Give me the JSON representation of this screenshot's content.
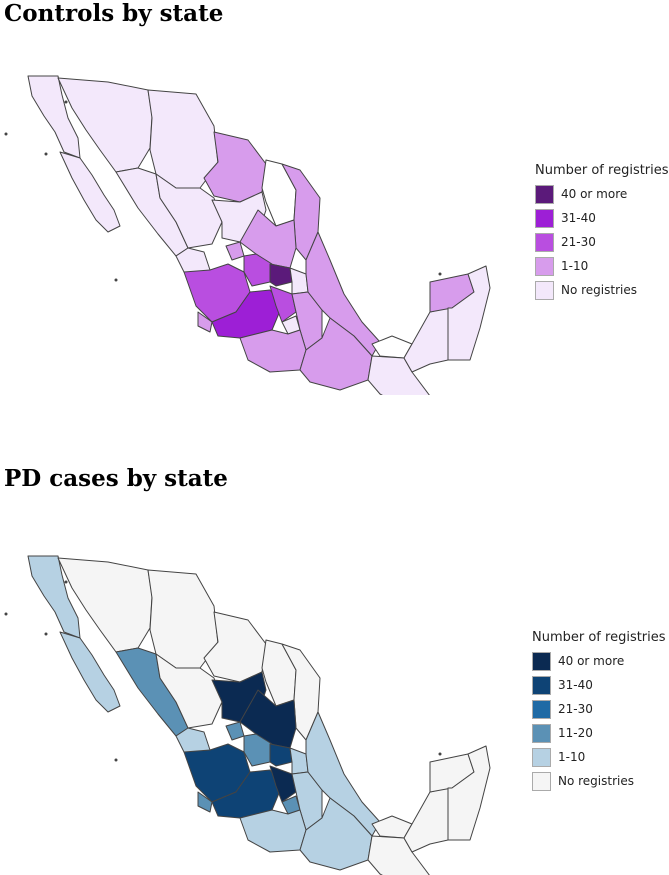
{
  "maps": [
    {
      "id": "controls",
      "title": "Controls by state",
      "legend": {
        "title": "Number of registries",
        "items": [
          {
            "label": "40 or more",
            "color": "#5b1a7a"
          },
          {
            "label": "31-40",
            "color": "#9d1fd6"
          },
          {
            "label": "21-30",
            "color": "#b94ee0"
          },
          {
            "label": "1-10",
            "color": "#d79cec"
          },
          {
            "label": "No registries",
            "color": "#f3e8fb"
          }
        ]
      }
    },
    {
      "id": "pd-cases",
      "title": "PD cases by state",
      "legend": {
        "title": "Number of registries",
        "items": [
          {
            "label": "40 or more",
            "color": "#0b2a52"
          },
          {
            "label": "31-40",
            "color": "#0e4375"
          },
          {
            "label": "21-30",
            "color": "#1f6aa5"
          },
          {
            "label": "11-20",
            "color": "#5b91b5"
          },
          {
            "label": "1-10",
            "color": "#b6d1e3"
          },
          {
            "label": "No registries",
            "color": "#f5f5f5"
          }
        ]
      }
    }
  ]
}
